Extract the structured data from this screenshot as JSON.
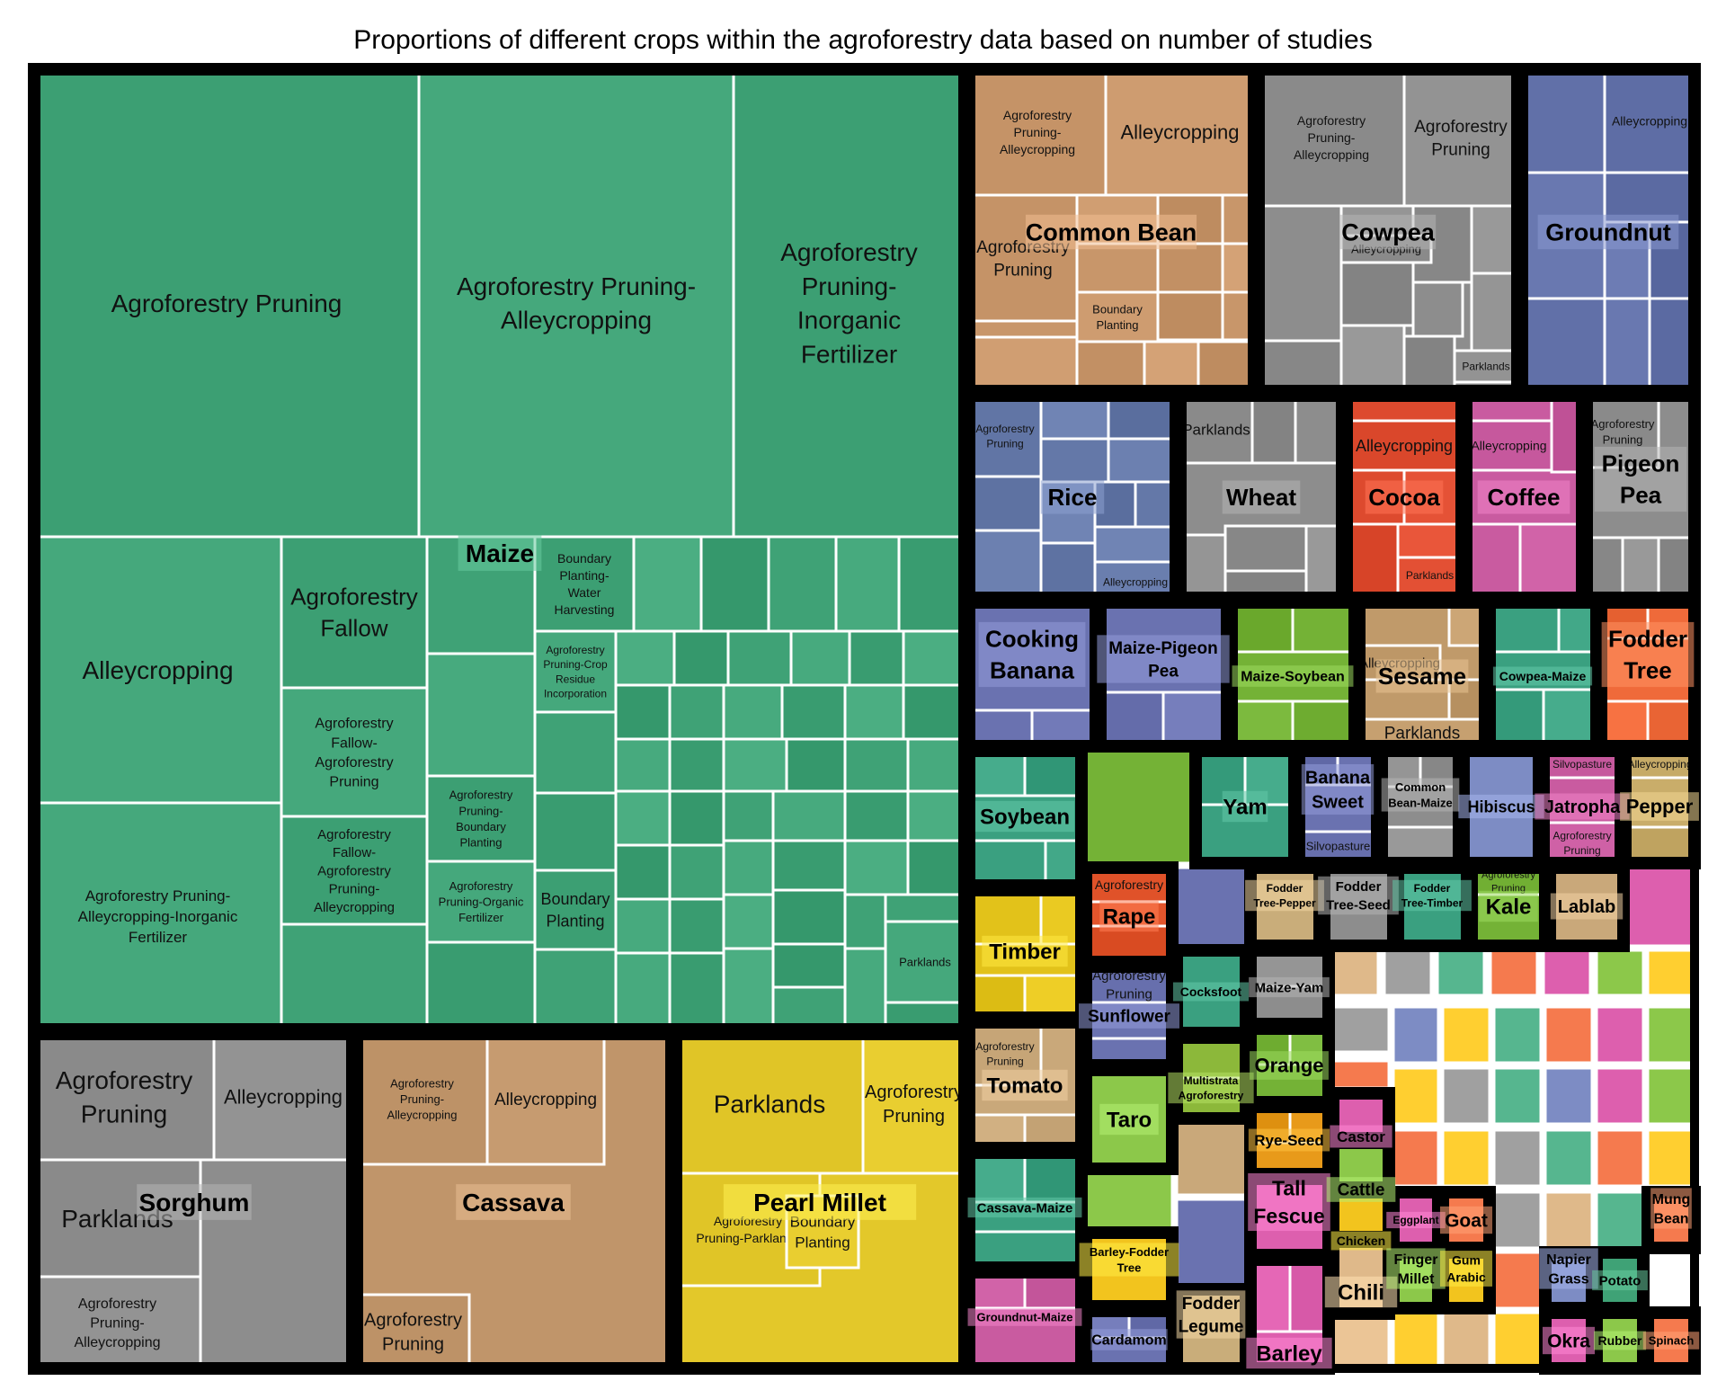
{
  "title": "Proportions of different crops within the agroforestry data based on number of studies",
  "chart_data": {
    "type": "treemap",
    "groups": [
      {
        "name": "Maize",
        "color": "#3fa276",
        "subs": [
          "Agroforestry Pruning",
          "Agroforestry Pruning-Alleycropping",
          "Agroforestry Pruning-Inorganic Fertilizer",
          "Alleycropping",
          "Agroforestry Fallow",
          "Agroforestry Fallow-Agroforestry Pruning",
          "Agroforestry Fallow-Agroforestry Pruning-Alleycropping",
          "Agroforestry Pruning-Alleycropping-Inorganic Fertilizer",
          "Agroforestry Pruning-Boundary Planting",
          "Agroforestry Pruning-Organic Fertilizer",
          "Boundary Planting-Water Harvesting",
          "Agroforestry Pruning-Crop Residue Incorporation",
          "Boundary Planting",
          "Parklands"
        ]
      },
      {
        "name": "Common Bean",
        "color": "#c8966a",
        "subs": [
          "Agroforestry Pruning-Alleycropping",
          "Alleycropping",
          "Agroforestry Pruning",
          "Boundary Planting"
        ]
      },
      {
        "name": "Cowpea",
        "color": "#8d8d8d",
        "subs": [
          "Agroforestry Pruning-Alleycropping",
          "Agroforestry Pruning",
          "Alleycropping",
          "Parklands"
        ]
      },
      {
        "name": "Groundnut",
        "color": "#6170a8",
        "subs": [
          "Alleycropping"
        ]
      },
      {
        "name": "Rice",
        "color": "#6478a8",
        "subs": [
          "Agroforestry Pruning",
          "Alleycropping"
        ]
      },
      {
        "name": "Wheat",
        "color": "#8d8d8d",
        "subs": [
          "Parklands"
        ]
      },
      {
        "name": "Cocoa",
        "color": "#dd4a2e",
        "subs": [
          "Alleycropping",
          "Parklands"
        ]
      },
      {
        "name": "Coffee",
        "color": "#c95ba0",
        "subs": [
          "Alleycropping"
        ]
      },
      {
        "name": "Pigeon Pea",
        "color": "#8d8d8d",
        "subs": [
          "Agroforestry Pruning"
        ]
      },
      {
        "name": "Cooking Banana",
        "color": "#6a72b0",
        "subs": []
      },
      {
        "name": "Maize-Pigeon Pea",
        "color": "#6a72b0",
        "subs": []
      },
      {
        "name": "Maize-Soybean",
        "color": "#74b236",
        "subs": []
      },
      {
        "name": "Sesame",
        "color": "#c09a6a",
        "subs": [
          "Alleycropping",
          "Parklands"
        ]
      },
      {
        "name": "Cowpea-Maize",
        "color": "#3aa080",
        "subs": []
      },
      {
        "name": "Fodder Tree",
        "color": "#ef6a3a",
        "subs": []
      },
      {
        "name": "Soybean",
        "color": "#3aa080",
        "subs": []
      },
      {
        "name": "Yam",
        "color": "#3aa080",
        "subs": []
      },
      {
        "name": "Banana Sweet",
        "color": "#6a72b0",
        "subs": [
          "Silvopasture"
        ]
      },
      {
        "name": "Common Bean-Maize",
        "color": "#8d8d8d",
        "subs": []
      },
      {
        "name": "Hibiscus",
        "color": "#7d8cc4",
        "subs": []
      },
      {
        "name": "Jatropha",
        "color": "#c95ba0",
        "subs": [
          "Silvopasture",
          "Agroforestry Pruning"
        ]
      },
      {
        "name": "Pepper",
        "color": "#c9ad6a",
        "subs": [
          "Alleycropping"
        ]
      },
      {
        "name": "Timber",
        "color": "#e2c21a",
        "subs": []
      },
      {
        "name": "Rape",
        "color": "#e3552c",
        "subs": [
          "Agroforestry"
        ]
      },
      {
        "name": "Sunflower",
        "color": "#6a72b0",
        "subs": [
          "Agroforestry Pruning"
        ]
      },
      {
        "name": "Tomato",
        "color": "#c9a87a",
        "subs": [
          "Agroforestry Pruning"
        ]
      },
      {
        "name": "Taro",
        "color": "#8cc84a",
        "subs": []
      },
      {
        "name": "Cassava-Maize",
        "color": "#3aa080",
        "subs": []
      },
      {
        "name": "Groundnut-Maize",
        "color": "#c95ba0",
        "subs": []
      },
      {
        "name": "Barley-Fodder Tree",
        "color": "#f2c41e",
        "subs": []
      },
      {
        "name": "Cardamom",
        "color": "#6a72b0",
        "subs": []
      },
      {
        "name": "Cocksfoot",
        "color": "#3aa080",
        "subs": []
      },
      {
        "name": "Multistrata Agroforestry",
        "color": "#8cb83a",
        "subs": []
      },
      {
        "name": "Fodder Legume",
        "color": "#c9ad7a",
        "subs": []
      },
      {
        "name": "Maize-Yam",
        "color": "#8d8d8d",
        "subs": []
      },
      {
        "name": "Orange",
        "color": "#74b236",
        "subs": []
      },
      {
        "name": "Rye-Seed",
        "color": "#e89a1a",
        "subs": []
      },
      {
        "name": "Tall Fescue",
        "color": "#dd5fae",
        "subs": []
      },
      {
        "name": "Barley",
        "color": "#dd5fae",
        "subs": []
      },
      {
        "name": "Castor",
        "color": "#dd5fae",
        "subs": []
      },
      {
        "name": "Cattle",
        "color": "#8cc84a",
        "subs": []
      },
      {
        "name": "Chicken",
        "color": "#f2c41e",
        "subs": []
      },
      {
        "name": "Chili",
        "color": "#dfb98a",
        "subs": []
      },
      {
        "name": "Fodder Tree-Pepper",
        "color": "#c9ad7a",
        "subs": []
      },
      {
        "name": "Fodder Tree-Seed",
        "color": "#8d8d8d",
        "subs": []
      },
      {
        "name": "Fodder Tree-Timber",
        "color": "#3aa080",
        "subs": []
      },
      {
        "name": "Kale",
        "color": "#74b236",
        "subs": [
          "Agroforestry Pruning"
        ]
      },
      {
        "name": "Lablab",
        "color": "#c9a87a",
        "subs": []
      },
      {
        "name": "Eggplant",
        "color": "#dd5fae",
        "subs": []
      },
      {
        "name": "Goat",
        "color": "#f57a4e",
        "subs": []
      },
      {
        "name": "Mung Bean",
        "color": "#f57a4e",
        "subs": []
      },
      {
        "name": "Finger Millet",
        "color": "#8cc84a",
        "subs": []
      },
      {
        "name": "Gum Arabic",
        "color": "#f2c41e",
        "subs": []
      },
      {
        "name": "Napier Grass",
        "color": "#7d8cc4",
        "subs": []
      },
      {
        "name": "Potato",
        "color": "#3fa276",
        "subs": []
      },
      {
        "name": "Okra",
        "color": "#dd5fae",
        "subs": []
      },
      {
        "name": "Rubber",
        "color": "#8cc84a",
        "subs": []
      },
      {
        "name": "Spinach",
        "color": "#f57a4e",
        "subs": []
      },
      {
        "name": "Sorghum",
        "color": "#8d8d8d",
        "subs": [
          "Agroforestry Pruning",
          "Alleycropping",
          "Parklands",
          "Agroforestry Pruning-Alleycropping"
        ]
      },
      {
        "name": "Cassava",
        "color": "#c0956a",
        "subs": [
          "Agroforestry Pruning-Alleycropping",
          "Alleycropping",
          "Agroforestry Pruning"
        ]
      },
      {
        "name": "Pearl Millet",
        "color": "#e3c82a",
        "subs": [
          "Parklands",
          "Agroforestry Pruning",
          "Agroforestry Pruning-Parklands",
          "Boundary Planting"
        ]
      }
    ]
  }
}
